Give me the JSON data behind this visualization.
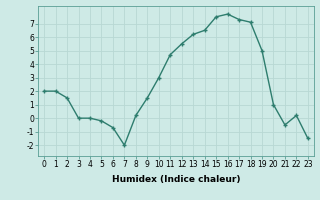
{
  "x": [
    0,
    1,
    2,
    3,
    4,
    5,
    6,
    7,
    8,
    9,
    10,
    11,
    12,
    13,
    14,
    15,
    16,
    17,
    18,
    19,
    20,
    21,
    22,
    23
  ],
  "y": [
    2,
    2,
    1.5,
    0,
    0,
    -0.2,
    -0.7,
    -2,
    0.2,
    1.5,
    3,
    4.7,
    5.5,
    6.2,
    6.5,
    7.5,
    7.7,
    7.3,
    7.1,
    5,
    1,
    -0.5,
    0.2,
    -1.5
  ],
  "line_color": "#2e7d6e",
  "marker": "+",
  "bg_color": "#ceeae6",
  "grid_color": "#b8d8d4",
  "xlabel": "Humidex (Indice chaleur)",
  "xlim": [
    -0.5,
    23.5
  ],
  "ylim": [
    -2.8,
    8.3
  ],
  "yticks": [
    -2,
    -1,
    0,
    1,
    2,
    3,
    4,
    5,
    6,
    7
  ],
  "xticks": [
    0,
    1,
    2,
    3,
    4,
    5,
    6,
    7,
    8,
    9,
    10,
    11,
    12,
    13,
    14,
    15,
    16,
    17,
    18,
    19,
    20,
    21,
    22,
    23
  ],
  "xlabel_fontsize": 6.5,
  "tick_fontsize": 5.5,
  "line_width": 1.0,
  "marker_size": 3.5
}
